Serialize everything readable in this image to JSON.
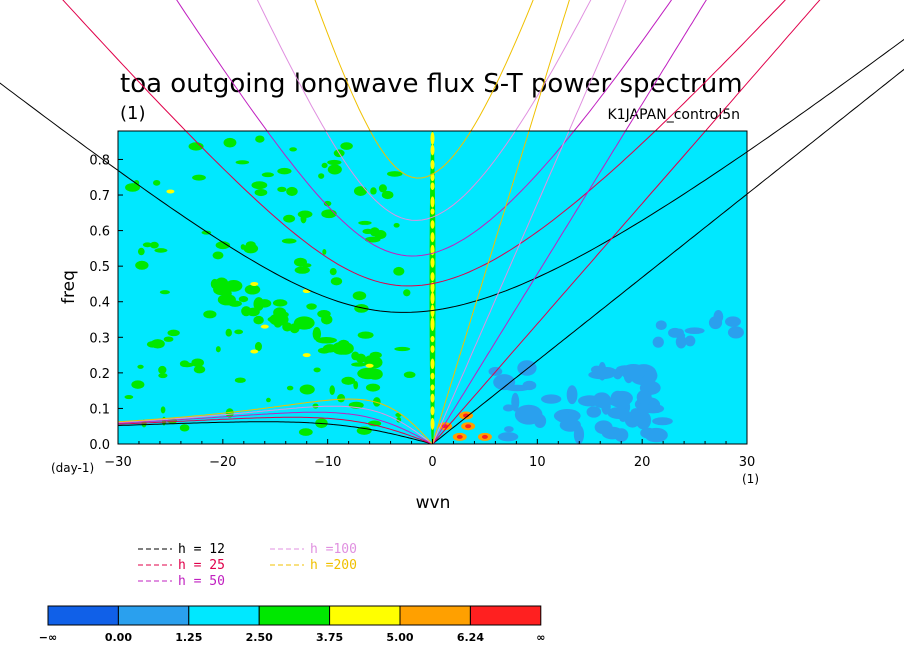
{
  "chart_data": {
    "type": "heatmap",
    "title": "toa outgoing longwave flux S-T power spectrum",
    "subtitle_left": "(1)",
    "subtitle_right": "K1JAPAN_control5n",
    "xlabel": "wvn",
    "ylabel": "freq",
    "x_unit": "(1)",
    "y_unit": "(day-1)",
    "xlim": [
      -30,
      30
    ],
    "ylim": [
      0,
      0.88
    ],
    "xticks": [
      -30,
      -20,
      -10,
      0,
      10,
      20,
      30
    ],
    "yticks": [
      0.0,
      0.1,
      0.2,
      0.3,
      0.4,
      0.5,
      0.6,
      0.7,
      0.8
    ],
    "xtick_labels": [
      "−30",
      "−20",
      "−10",
      "0",
      "10",
      "20",
      "30"
    ],
    "ytick_labels": [
      "0.0",
      "0.1",
      "0.2",
      "0.3",
      "0.4",
      "0.5",
      "0.6",
      "0.7",
      "0.8"
    ],
    "dispersion_curves": [
      {
        "name": "h = 12",
        "h": 12,
        "color": "#000000"
      },
      {
        "name": "h = 25",
        "h": 25,
        "color": "#e0004a"
      },
      {
        "name": "h = 50",
        "h": 50,
        "color": "#c020c0"
      },
      {
        "name": "h =100",
        "h": 100,
        "color": "#e090e0"
      },
      {
        "name": "h =200",
        "h": 200,
        "color": "#f0c000"
      }
    ],
    "colorbar": {
      "levels": [
        "−∞",
        "0.00",
        "1.25",
        "2.50",
        "3.75",
        "5.00",
        "6.24",
        "∞"
      ],
      "colors": [
        "#1060e8",
        "#2aa0ee",
        "#00e8ff",
        "#00e800",
        "#ffff00",
        "#ffa000",
        "#ff2020"
      ]
    },
    "background_level_color": "#00e8ff"
  }
}
